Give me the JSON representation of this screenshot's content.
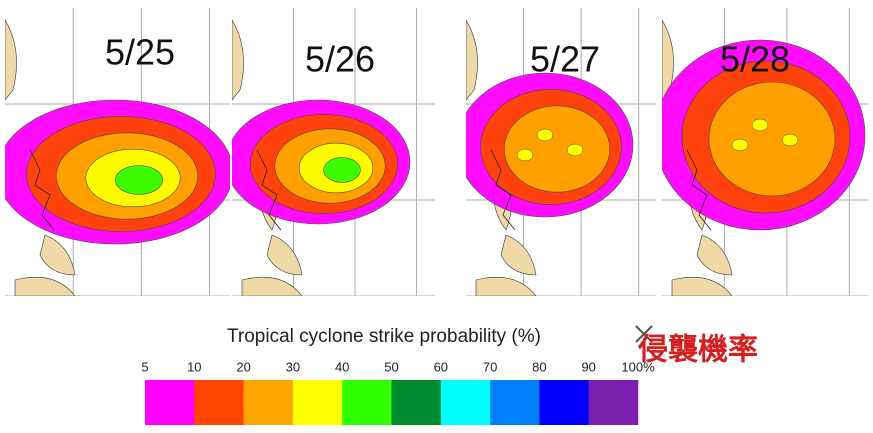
{
  "panels": [
    {
      "label": "5/25"
    },
    {
      "label": "5/26"
    },
    {
      "label": "5/27"
    },
    {
      "label": "5/28"
    }
  ],
  "legend": {
    "title": "Tropical cyclone strike probability (%)",
    "ticks": [
      5,
      10,
      20,
      30,
      40,
      50,
      60,
      70,
      80,
      90,
      {
        "value": 100,
        "label": "100%"
      }
    ],
    "colors": [
      "#ff00ff",
      "#ff4500",
      "#ffa500",
      "#ffff00",
      "#32ff00",
      "#008b2e",
      "#00ffff",
      "#0080ff",
      "#0000ff",
      "#7a1fb0"
    ]
  },
  "annotation": "侵襲機率"
}
